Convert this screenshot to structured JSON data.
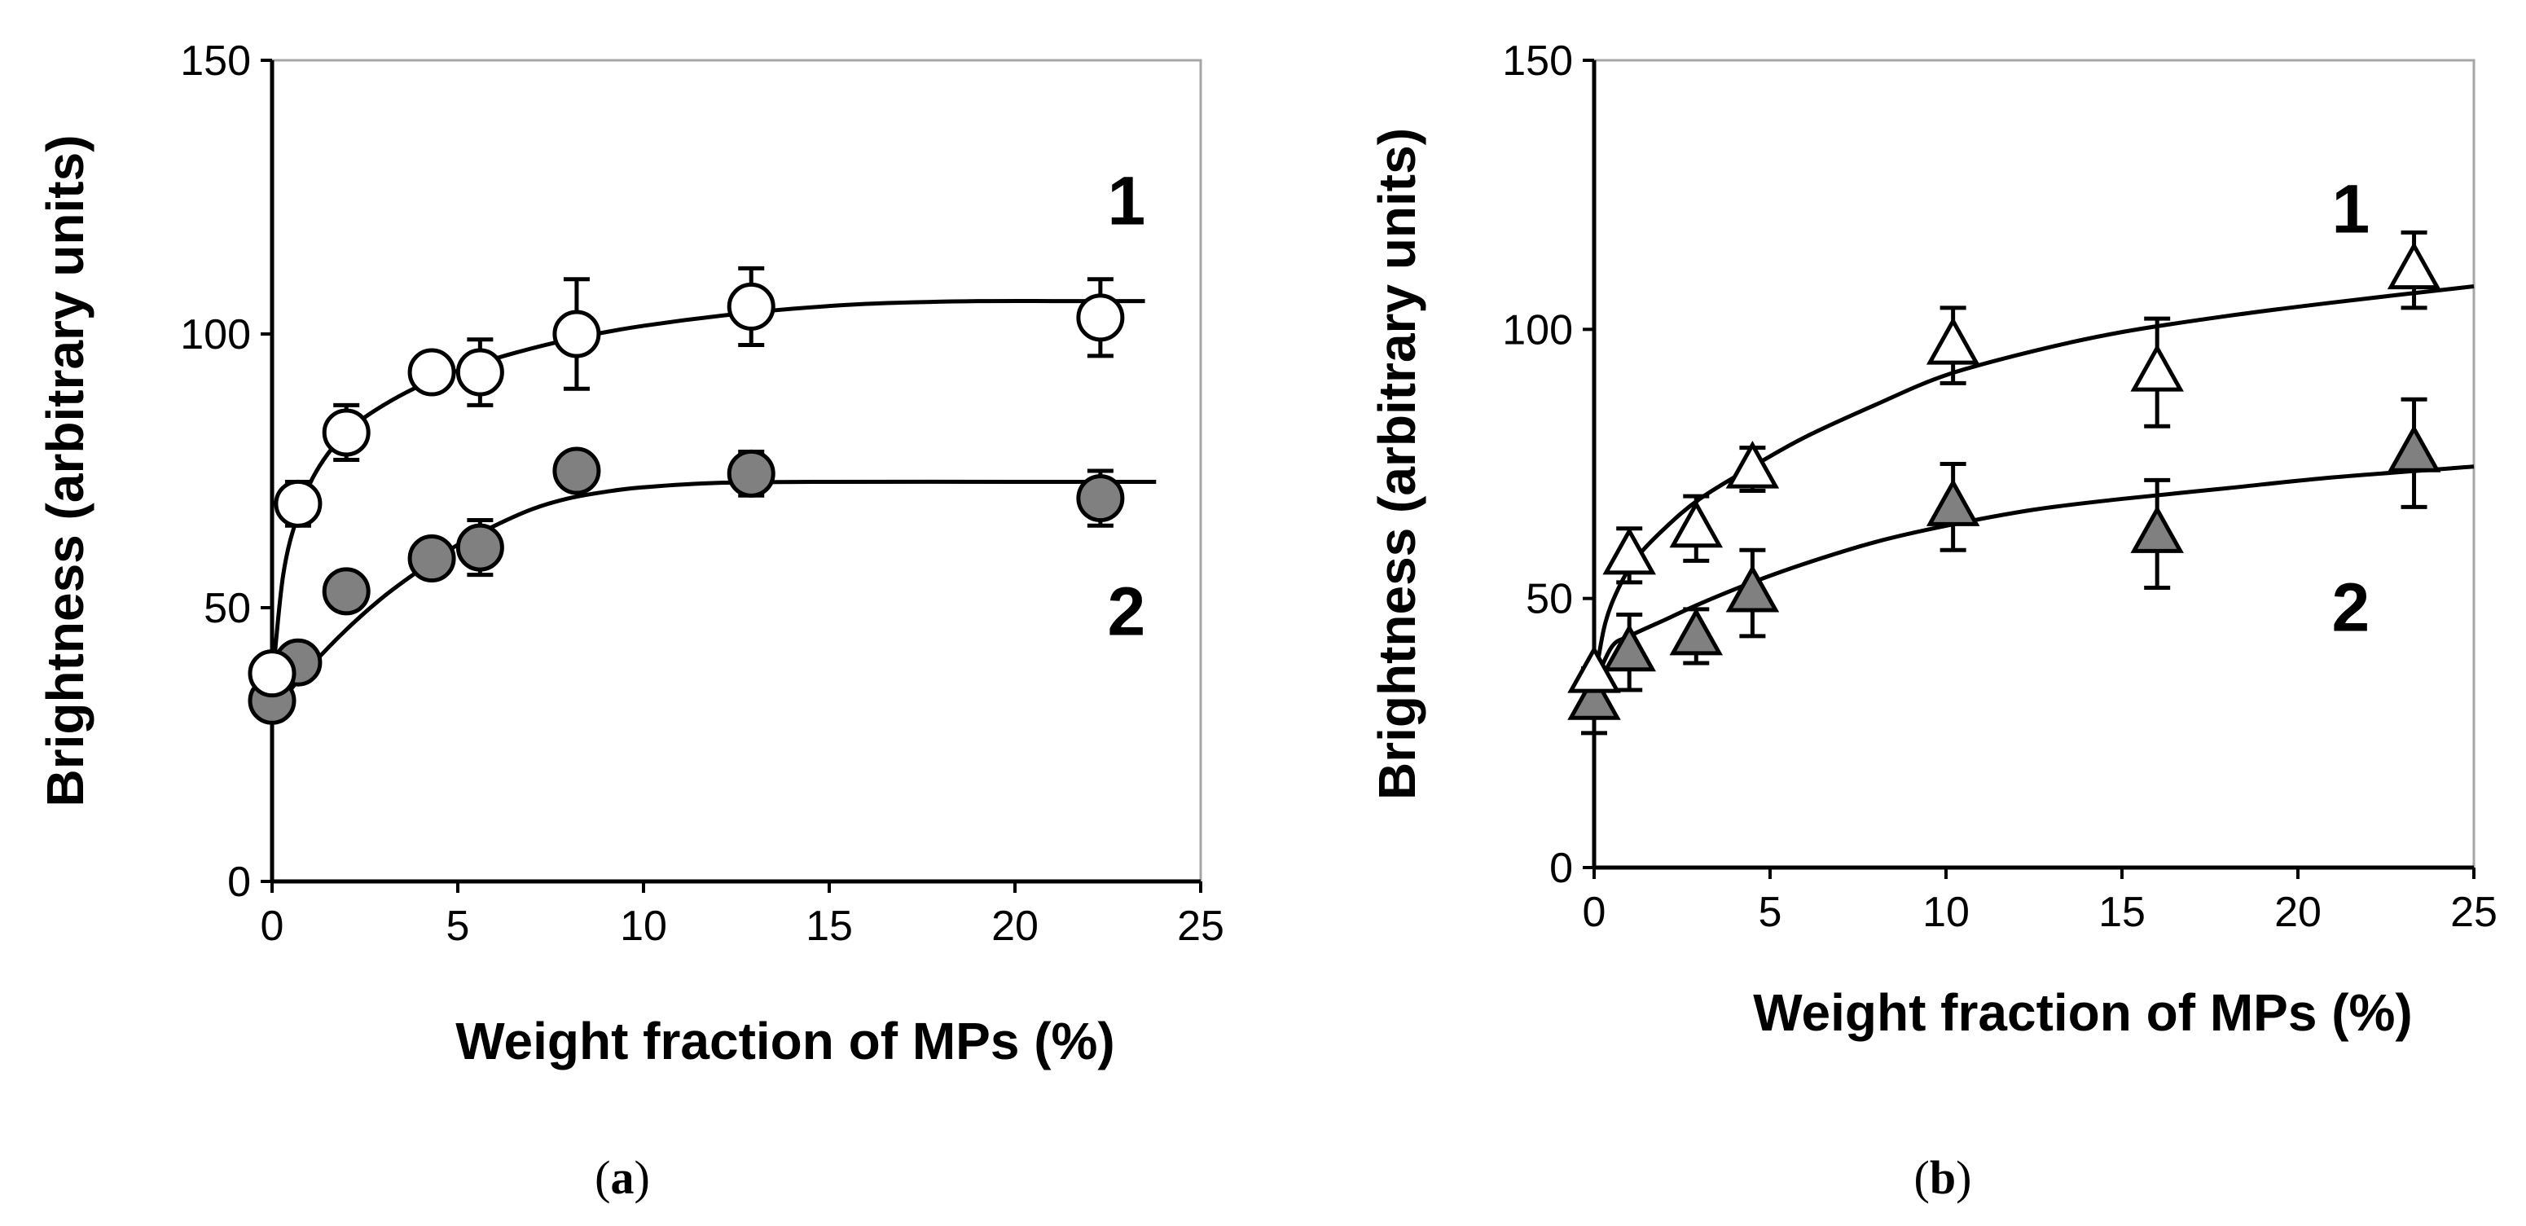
{
  "colors": {
    "axis": "#000000",
    "frame": "#a6a6a6",
    "open_fill": "#ffffff",
    "filled_fill": "#808080",
    "stroke": "#000000"
  },
  "chart_data": [
    {
      "id": "a",
      "type": "scatter",
      "caption_letter": "a",
      "xlabel": "Weight fraction of MPs (%)",
      "ylabel": "Brightness (arbitrary units)",
      "xlim": [
        0,
        25
      ],
      "ylim": [
        0,
        150
      ],
      "xticks": [
        0,
        5,
        10,
        15,
        20,
        25
      ],
      "yticks": [
        0,
        50,
        100,
        150
      ],
      "grid": false,
      "series": [
        {
          "name": "1",
          "marker": "circle-open",
          "label_position": [
            23,
            120
          ],
          "points": [
            {
              "x": 0,
              "y": 38,
              "err": 0
            },
            {
              "x": 0.7,
              "y": 69,
              "err": 4
            },
            {
              "x": 2,
              "y": 82,
              "err": 5
            },
            {
              "x": 4.3,
              "y": 93,
              "err": 3
            },
            {
              "x": 5.6,
              "y": 93,
              "err": 6
            },
            {
              "x": 8.2,
              "y": 100,
              "err": 10
            },
            {
              "x": 12.9,
              "y": 105,
              "err": 7
            },
            {
              "x": 22.3,
              "y": 103,
              "err": 7
            }
          ],
          "fit": [
            [
              0,
              36
            ],
            [
              0.3,
              56
            ],
            [
              0.7,
              67
            ],
            [
              1.2,
              75
            ],
            [
              2,
              82
            ],
            [
              3,
              87
            ],
            [
              4.3,
              91.5
            ],
            [
              6,
              95.5
            ],
            [
              8,
              99
            ],
            [
              10,
              101.5
            ],
            [
              13,
              104
            ],
            [
              16,
              105.5
            ],
            [
              19,
              106
            ],
            [
              22,
              106
            ],
            [
              23.5,
              106
            ]
          ]
        },
        {
          "name": "2",
          "marker": "circle-filled",
          "label_position": [
            23,
            45
          ],
          "points": [
            {
              "x": 0,
              "y": 33,
              "err": 0
            },
            {
              "x": 0.7,
              "y": 40,
              "err": 0
            },
            {
              "x": 2,
              "y": 53,
              "err": 0
            },
            {
              "x": 4.3,
              "y": 59,
              "err": 0
            },
            {
              "x": 5.6,
              "y": 61,
              "err": 5
            },
            {
              "x": 8.2,
              "y": 75,
              "err": 0
            },
            {
              "x": 12.9,
              "y": 74.5,
              "err": 4
            },
            {
              "x": 22.3,
              "y": 70,
              "err": 5
            }
          ],
          "fit": [
            [
              0,
              31
            ],
            [
              1,
              39
            ],
            [
              2,
              46
            ],
            [
              3,
              52
            ],
            [
              4,
              57
            ],
            [
              5,
              61.5
            ],
            [
              6,
              65
            ],
            [
              7,
              68
            ],
            [
              8,
              70
            ],
            [
              9,
              71.2
            ],
            [
              10,
              72
            ],
            [
              12,
              72.8
            ],
            [
              15,
              73
            ],
            [
              20,
              73
            ],
            [
              23.8,
              73
            ]
          ]
        }
      ]
    },
    {
      "id": "b",
      "type": "scatter",
      "caption_letter": "b",
      "xlabel": "Weight fraction of MPs (%)",
      "ylabel": "Brightness (arbitrary units)",
      "xlim": [
        0,
        25
      ],
      "ylim": [
        0,
        150
      ],
      "xticks": [
        0,
        5,
        10,
        15,
        20,
        25
      ],
      "yticks": [
        0,
        50,
        100,
        150
      ],
      "grid": false,
      "series": [
        {
          "name": "1",
          "marker": "triangle-open",
          "label_position": [
            21.5,
            118
          ],
          "points": [
            {
              "x": 0,
              "y": 36,
              "err": 0
            },
            {
              "x": 1,
              "y": 58,
              "err": 5
            },
            {
              "x": 2.9,
              "y": 63,
              "err": 6
            },
            {
              "x": 4.5,
              "y": 74,
              "err": 4
            },
            {
              "x": 10.2,
              "y": 97,
              "err": 7
            },
            {
              "x": 16,
              "y": 92,
              "err": 10
            },
            {
              "x": 23.3,
              "y": 111,
              "err": 7
            }
          ],
          "fit": [
            [
              0,
              34
            ],
            [
              0.3,
              45
            ],
            [
              0.7,
              52
            ],
            [
              1.2,
              57.5
            ],
            [
              2,
              63
            ],
            [
              3,
              68.5
            ],
            [
              4.5,
              74.5
            ],
            [
              6,
              80
            ],
            [
              8,
              86
            ],
            [
              10,
              91.5
            ],
            [
              12.5,
              96
            ],
            [
              15,
              99.5
            ],
            [
              18,
              102.5
            ],
            [
              21,
              105
            ],
            [
              25,
              108
            ]
          ]
        },
        {
          "name": "2",
          "marker": "triangle-filled",
          "label_position": [
            21.5,
            44
          ],
          "points": [
            {
              "x": 0,
              "y": 31,
              "err": 6
            },
            {
              "x": 1,
              "y": 40,
              "err": 7
            },
            {
              "x": 2.9,
              "y": 43,
              "err": 5
            },
            {
              "x": 4.5,
              "y": 51,
              "err": 8
            },
            {
              "x": 10.2,
              "y": 67,
              "err": 8
            },
            {
              "x": 16,
              "y": 62,
              "err": 10
            },
            {
              "x": 23.3,
              "y": 77,
              "err": 10
            }
          ],
          "fit": [
            [
              0,
              34
            ],
            [
              0.5,
              41
            ],
            [
              1,
              43
            ],
            [
              2,
              46
            ],
            [
              3,
              49
            ],
            [
              4.5,
              53
            ],
            [
              6,
              56.5
            ],
            [
              8,
              60.5
            ],
            [
              10,
              63.5
            ],
            [
              12.5,
              66.5
            ],
            [
              15,
              68.5
            ],
            [
              18,
              70.5
            ],
            [
              21,
              72.5
            ],
            [
              25,
              74.5
            ]
          ]
        }
      ]
    }
  ]
}
